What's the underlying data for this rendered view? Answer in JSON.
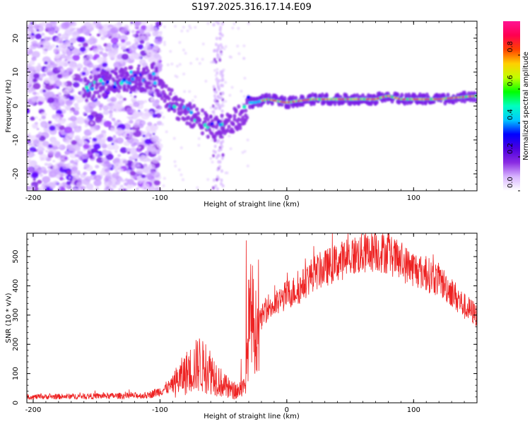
{
  "figure_title": "S197.2025.316.17.14.E09",
  "chart_data": [
    {
      "type": "heatmap",
      "name": "spectrogram",
      "xlabel": "Height of straight line (km)",
      "ylabel": "Frequency (Hz)",
      "xlim": [
        -205,
        150
      ],
      "ylim": [
        -25,
        25
      ],
      "xticks": [
        -200,
        -100,
        0,
        100
      ],
      "yticks": [
        -20,
        -10,
        0,
        10,
        20
      ],
      "xtick_labels": [
        "-200",
        "-100",
        "0",
        "100"
      ],
      "ytick_labels": [
        "-20",
        "-10",
        "0",
        "10",
        "20"
      ],
      "ridge": {
        "x": [
          -155,
          -140,
          -125,
          -112,
          -105,
          -95,
          -85,
          -75,
          -65,
          -55,
          -45,
          -35,
          -30,
          -25,
          -15,
          0,
          20,
          45,
          70,
          80,
          90,
          105,
          120,
          150
        ],
        "y": [
          5,
          7,
          8,
          8,
          9,
          3,
          -1,
          -3,
          -5,
          -7,
          -5,
          -3,
          1,
          1,
          2,
          1,
          2,
          2,
          2,
          3,
          2,
          2,
          2,
          3
        ]
      },
      "colorbar": {
        "label": "Normalized spectral amplitude",
        "range": [
          0.0,
          1.0
        ],
        "ticks": [
          0.0,
          0.2,
          0.4,
          0.6,
          0.8
        ],
        "tick_labels": [
          "0.0",
          "0.2",
          "0.4",
          "0.6",
          "0.8"
        ],
        "colors": [
          "#ffffff",
          "#d8b4ff",
          "#8a2be2",
          "#4b00e0",
          "#0000ff",
          "#00c8ff",
          "#00ffc0",
          "#00ff00",
          "#c0ff00",
          "#ffd000",
          "#ff4000",
          "#ff0050",
          "#ff1493"
        ]
      }
    },
    {
      "type": "line",
      "name": "snr",
      "xlabel": "Height of straight line (km)",
      "ylabel": "SNR (10 * v/v)",
      "xlim": [
        -205,
        150
      ],
      "ylim": [
        0,
        580
      ],
      "xticks": [
        -200,
        -100,
        0,
        100
      ],
      "yticks": [
        0,
        100,
        200,
        300,
        400,
        500
      ],
      "xtick_labels": [
        "-200",
        "-100",
        "0",
        "100"
      ],
      "ytick_labels": [
        "0",
        "100",
        "200",
        "300",
        "400",
        "500"
      ],
      "color": "#ee2222",
      "envelope": {
        "x": [
          -205,
          -110,
          -100,
          -90,
          -80,
          -70,
          -60,
          -50,
          -42,
          -33,
          -31,
          -28,
          -25,
          -20,
          -15,
          -10,
          0,
          10,
          20,
          30,
          40,
          50,
          60,
          70,
          80,
          90,
          100,
          110,
          120,
          130,
          140,
          150
        ],
        "y": [
          20,
          25,
          40,
          60,
          100,
          130,
          110,
          60,
          40,
          50,
          160,
          330,
          240,
          290,
          330,
          330,
          370,
          390,
          440,
          460,
          480,
          500,
          510,
          520,
          510,
          480,
          460,
          440,
          420,
          380,
          330,
          300
        ]
      },
      "spikes": {
        "x": [
          -69,
          -64,
          -36,
          -32,
          -30,
          80
        ],
        "y": [
          220,
          200,
          150,
          555,
          420,
          578
        ]
      }
    }
  ]
}
